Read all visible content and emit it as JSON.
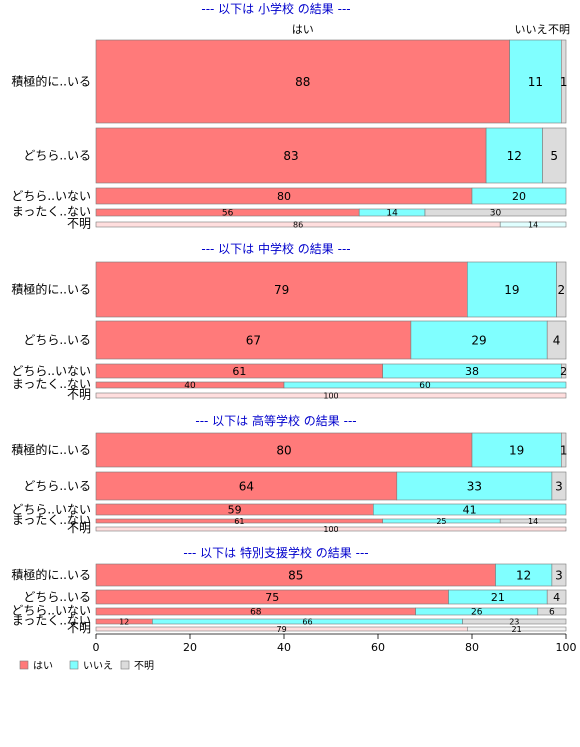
{
  "chart_data": {
    "type": "bar",
    "orientation": "horizontal",
    "stacked": true,
    "colors": {
      "はい": "#ff7a7a",
      "いいえ": "#80ffff",
      "不明": "#dcdcdc"
    },
    "header_labels": [
      "はい",
      "いいえ",
      "不明"
    ],
    "x_ticks": [
      "0",
      "20",
      "40",
      "60",
      "80",
      "100"
    ],
    "xlim": [
      0,
      100
    ],
    "legend": {
      "placement": "bottom-left",
      "entries": [
        "はい",
        "いいえ",
        "不明"
      ]
    },
    "sections": [
      {
        "title": "--- 以下は 小学校 の結果 ---",
        "rows": [
          {
            "label": "積極的に..いる",
            "values": [
              88,
              11,
              1
            ]
          },
          {
            "label": "どちら..いる",
            "values": [
              83,
              12,
              5
            ]
          },
          {
            "label": "どちら..いない",
            "values": [
              80,
              20,
              0
            ]
          },
          {
            "label": "まったく..ない",
            "values": [
              56,
              14,
              30
            ]
          },
          {
            "label": "不明",
            "values": [
              86,
              14,
              0
            ]
          }
        ]
      },
      {
        "title": "--- 以下は 中学校 の結果 ---",
        "rows": [
          {
            "label": "積極的に..いる",
            "values": [
              79,
              19,
              2
            ]
          },
          {
            "label": "どちら..いる",
            "values": [
              67,
              29,
              4
            ]
          },
          {
            "label": "どちら..いない",
            "values": [
              61,
              38,
              2
            ]
          },
          {
            "label": "まったく..ない",
            "values": [
              40,
              60,
              0
            ]
          },
          {
            "label": "不明",
            "values": [
              100,
              0,
              0
            ]
          }
        ]
      },
      {
        "title": "--- 以下は 高等学校 の結果 ---",
        "rows": [
          {
            "label": "積極的に..いる",
            "values": [
              80,
              19,
              1
            ]
          },
          {
            "label": "どちら..いる",
            "values": [
              64,
              33,
              3
            ]
          },
          {
            "label": "どちら..いない",
            "values": [
              59,
              41,
              0
            ]
          },
          {
            "label": "まったく..ない",
            "values": [
              61,
              25,
              14
            ]
          },
          {
            "label": "不明",
            "values": [
              100,
              0,
              0
            ]
          }
        ]
      },
      {
        "title": "--- 以下は 特別支援学校 の結果 ---",
        "rows": [
          {
            "label": "積極的に..いる",
            "values": [
              85,
              12,
              3
            ]
          },
          {
            "label": "どちら..いる",
            "values": [
              75,
              21,
              4
            ]
          },
          {
            "label": "どちら..いない",
            "values": [
              68,
              26,
              6
            ]
          },
          {
            "label": "まったく..ない",
            "values": [
              12,
              66,
              23
            ]
          },
          {
            "label": "不明",
            "values": [
              79,
              0,
              21
            ]
          }
        ]
      }
    ]
  }
}
